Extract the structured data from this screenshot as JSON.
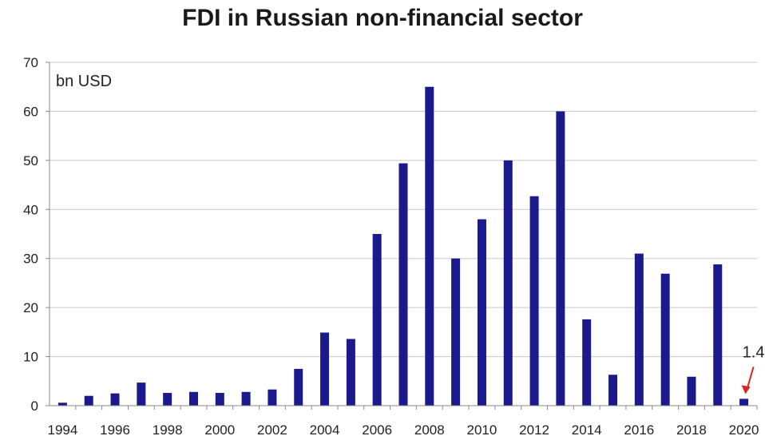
{
  "chart_data": {
    "type": "bar",
    "title": "FDI in Russian non-financial sector",
    "ylabel": "bn USD",
    "xlabel": "",
    "ylim": [
      0,
      70
    ],
    "yticks": [
      0,
      10,
      20,
      30,
      40,
      50,
      60,
      70
    ],
    "grid": true,
    "bar_color": "#1a1a8c",
    "categories": [
      "1994",
      "1995",
      "1996",
      "1997",
      "1998",
      "1999",
      "2000",
      "2001",
      "2002",
      "2003",
      "2004",
      "2005",
      "2006",
      "2007",
      "2008",
      "2009",
      "2010",
      "2011",
      "2012",
      "2013",
      "2014",
      "2015",
      "2016",
      "2017",
      "2018",
      "2019",
      "2020"
    ],
    "xtick_labels": [
      "1994",
      "",
      "1996",
      "",
      "1998",
      "",
      "2000",
      "",
      "2002",
      "",
      "2004",
      "",
      "2006",
      "",
      "2008",
      "",
      "2010",
      "",
      "2012",
      "",
      "2014",
      "",
      "2016",
      "",
      "2018",
      "",
      "2020"
    ],
    "values": [
      0.6,
      2.0,
      2.5,
      4.7,
      2.6,
      2.8,
      2.6,
      2.8,
      3.3,
      7.5,
      14.9,
      13.6,
      35.0,
      49.4,
      65.0,
      30.0,
      38.0,
      50.0,
      42.7,
      60.0,
      17.6,
      6.3,
      31.0,
      26.9,
      5.9,
      28.8,
      1.4
    ],
    "annotation": {
      "text": "1.4",
      "category": "2020",
      "arrow_color": "#e02020"
    }
  }
}
